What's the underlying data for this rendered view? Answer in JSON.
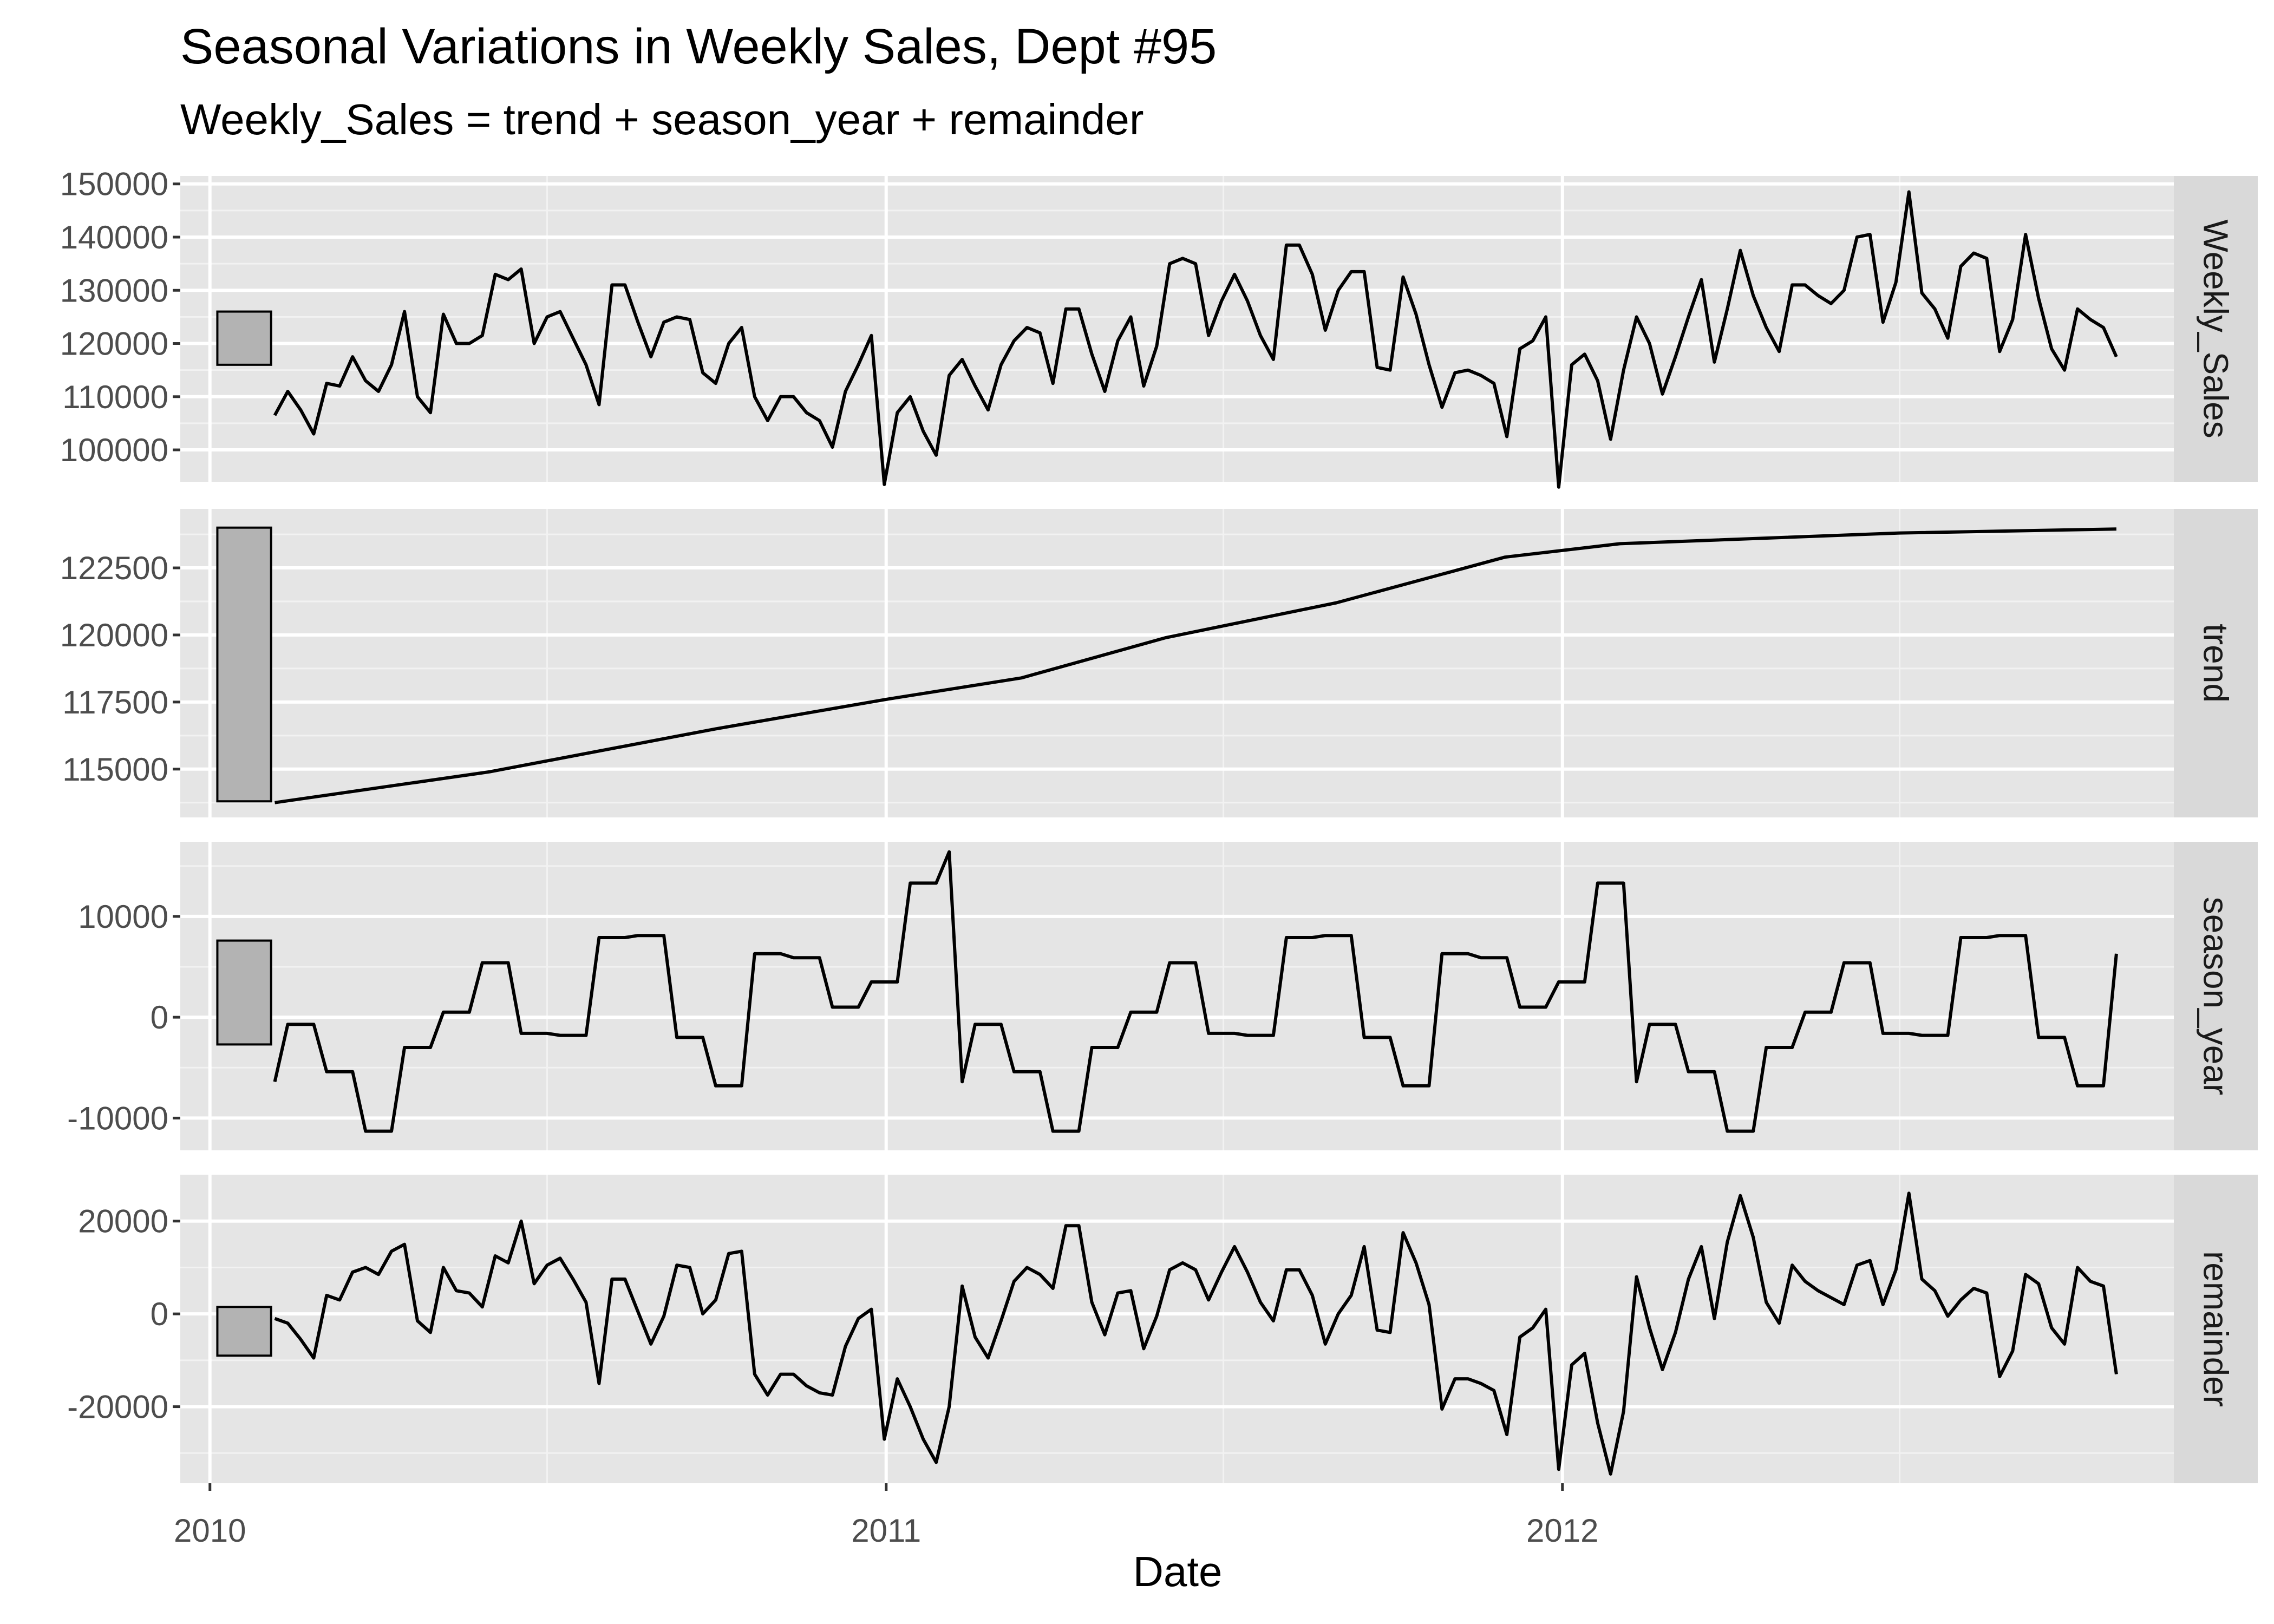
{
  "chart_data": {
    "type": "line",
    "title": "Seasonal Variations in Weekly Sales, Dept #95",
    "subtitle": "Weekly_Sales = trend + season_year + remainder",
    "xlabel": "Date",
    "x_range": [
      "2009-12-16",
      "2012-11-26"
    ],
    "x_ticks": [
      {
        "date": "2010-01-01",
        "label": "2010"
      },
      {
        "date": "2011-01-01",
        "label": "2011"
      },
      {
        "date": "2012-01-01",
        "label": "2012"
      }
    ],
    "x_minor_ticks": [
      "2010-07-02",
      "2011-07-02",
      "2012-07-01"
    ],
    "grid": true,
    "background": "#e5e5e5",
    "strip_background": "#d9d9d9",
    "line_color": "#000000",
    "scale_bar_fill": "#b3b3b3",
    "series_start_date": "2010-02-05",
    "series_interval_days": 7,
    "panels": [
      {
        "name": "Weekly_Sales",
        "ylim": [
          94000,
          151500
        ],
        "y_ticks": [
          100000,
          110000,
          120000,
          130000,
          140000,
          150000
        ],
        "y_tick_labels": [
          "100000",
          "110000",
          "120000",
          "130000",
          "140000",
          "150000"
        ],
        "y_minor_ticks": [
          105000,
          115000,
          125000,
          135000,
          145000
        ],
        "scale_bar": [
          116000,
          126000
        ],
        "values": [
          106500,
          111000,
          107500,
          103000,
          112500,
          112000,
          117500,
          113000,
          111000,
          116000,
          126000,
          110000,
          107000,
          125500,
          120000,
          120000,
          121500,
          133000,
          132000,
          134000,
          120000,
          125000,
          126000,
          121000,
          116000,
          108500,
          131000,
          131000,
          124000,
          117500,
          124000,
          125000,
          124500,
          114500,
          112500,
          120000,
          123000,
          110000,
          105500,
          110000,
          110000,
          107000,
          105500,
          100500,
          111000,
          116000,
          121500,
          93500,
          107000,
          110000,
          103500,
          99000,
          114000,
          117000,
          112000,
          107500,
          116000,
          120500,
          123000,
          122000,
          112500,
          126500,
          126500,
          118000,
          111000,
          120500,
          125000,
          112000,
          119500,
          135000,
          136000,
          135000,
          121500,
          128000,
          133000,
          128000,
          121500,
          117000,
          138500,
          138500,
          133000,
          122500,
          130000,
          133500,
          133500,
          115500,
          115000,
          132500,
          125500,
          116000,
          108000,
          114500,
          115000,
          114000,
          112500,
          102500,
          119000,
          120500,
          125000,
          93000,
          116000,
          118000,
          113000,
          102000,
          115000,
          125000,
          120000,
          110500,
          117500,
          125000,
          132000,
          116500,
          126500,
          137500,
          129000,
          123000,
          118500,
          131000,
          131000,
          129000,
          127500,
          130000,
          140000,
          140500,
          124000,
          131500,
          148500,
          129500,
          126500,
          121000,
          134500,
          137000,
          136000,
          118500,
          124500,
          140500,
          128500,
          119000,
          115000,
          126500,
          124500,
          123000,
          117500
        ]
      },
      {
        "name": "trend",
        "ylim": [
          113200,
          124700
        ],
        "y_ticks": [
          115000,
          117500,
          120000,
          122500
        ],
        "y_tick_labels": [
          "115000",
          "117500",
          "120000",
          "122500"
        ],
        "y_minor_ticks": [
          113750,
          116250,
          118750,
          121250,
          123750
        ],
        "scale_bar": [
          113800,
          124000
        ],
        "anchors": [
          [
            "2010-02-05",
            113750
          ],
          [
            "2010-06-01",
            114900
          ],
          [
            "2010-10-01",
            116500
          ],
          [
            "2011-01-01",
            117600
          ],
          [
            "2011-03-15",
            118400
          ],
          [
            "2011-06-01",
            119900
          ],
          [
            "2011-09-01",
            121200
          ],
          [
            "2011-12-01",
            122900
          ],
          [
            "2012-02-01",
            123400
          ],
          [
            "2012-07-01",
            123800
          ],
          [
            "2012-10-26",
            123950
          ]
        ]
      },
      {
        "name": "season_year",
        "ylim": [
          -13200,
          17400
        ],
        "y_ticks": [
          -10000,
          0,
          10000
        ],
        "y_tick_labels": [
          "-10000",
          "0",
          "10000"
        ],
        "y_minor_ticks": [
          -5000,
          5000,
          15000
        ],
        "scale_bar": [
          -2700,
          7600
        ],
        "values": [
          -6400,
          -700,
          -700,
          -700,
          -5400,
          -5400,
          -5400,
          -11300,
          -11300,
          -11300,
          -3000,
          -3000,
          -3000,
          500,
          500,
          500,
          5400,
          5400,
          5400,
          -1600,
          -1600,
          -1600,
          -1800,
          -1800,
          -1800,
          7900,
          7900,
          7900,
          8100,
          8100,
          8100,
          -2000,
          -2000,
          -2000,
          -6800,
          -6800,
          -6800,
          6300,
          6300,
          6300,
          5900,
          5900,
          5900,
          1000,
          1000,
          1000,
          3500,
          3500,
          3500,
          13300,
          13300,
          13300,
          16400,
          -6400,
          -700,
          -700,
          -700,
          -5400,
          -5400,
          -5400,
          -11300,
          -11300,
          -11300,
          -3000,
          -3000,
          -3000,
          500,
          500,
          500,
          5400,
          5400,
          5400,
          -1600,
          -1600,
          -1600,
          -1800,
          -1800,
          -1800,
          7900,
          7900,
          7900,
          8100,
          8100,
          8100,
          -2000,
          -2000,
          -2000,
          -6800,
          -6800,
          -6800,
          6300,
          6300,
          6300,
          5900,
          5900,
          5900,
          1000,
          1000,
          1000,
          3500,
          3500,
          3500,
          13300,
          13300,
          13300,
          -6400,
          -700,
          -700,
          -700,
          -5400,
          -5400,
          -5400,
          -11300,
          -11300,
          -11300,
          -3000,
          -3000,
          -3000,
          500,
          500,
          500,
          5400,
          5400,
          5400,
          -1600,
          -1600,
          -1600,
          -1800,
          -1800,
          -1800,
          7900,
          7900,
          7900,
          8100,
          8100,
          8100,
          -2000,
          -2000,
          -2000,
          -6800,
          -6800,
          -6800,
          6300
        ]
      },
      {
        "name": "remainder",
        "ylim": [
          -36500,
          30000
        ],
        "y_ticks": [
          -20000,
          0,
          20000
        ],
        "y_tick_labels": [
          "-20000",
          "0",
          "20000"
        ],
        "y_minor_ticks": [
          -30000,
          -10000,
          10000
        ],
        "scale_bar": [
          -9000,
          1500
        ],
        "values": [
          -1000,
          -2000,
          -5500,
          -9500,
          4000,
          3000,
          9000,
          10000,
          8500,
          13500,
          15000,
          -1500,
          -4000,
          10000,
          5000,
          4500,
          1500,
          12500,
          11000,
          20000,
          6500,
          10500,
          12000,
          7500,
          2500,
          -15000,
          7500,
          7500,
          500,
          -6500,
          -500,
          10500,
          10000,
          0,
          3000,
          13000,
          13500,
          -13000,
          -17500,
          -13000,
          -13000,
          -15500,
          -17000,
          -17500,
          -7000,
          -1000,
          1000,
          -27000,
          -14000,
          -20000,
          -27000,
          -32000,
          -20000,
          6000,
          -5000,
          -9500,
          -1500,
          7000,
          10000,
          8500,
          5500,
          19000,
          19000,
          2500,
          -4500,
          4500,
          5000,
          -7500,
          -500,
          9500,
          11000,
          9500,
          3000,
          9000,
          14500,
          9000,
          2500,
          -1500,
          9500,
          9500,
          4000,
          -6500,
          0,
          4000,
          14500,
          -3500,
          -4000,
          17500,
          11000,
          2000,
          -20500,
          -14000,
          -14000,
          -15000,
          -16500,
          -26000,
          -5000,
          -3000,
          1000,
          -33500,
          -11000,
          -8500,
          -23500,
          -34500,
          -21000,
          8000,
          -3000,
          -12000,
          -4000,
          7500,
          14500,
          -1000,
          15500,
          25500,
          16500,
          2500,
          -2000,
          10500,
          7000,
          5000,
          3500,
          2000,
          10500,
          11500,
          2000,
          9500,
          26000,
          7500,
          5000,
          -500,
          3000,
          5500,
          4500,
          -13500,
          -8000,
          8500,
          6500,
          -3000,
          -6500,
          10000,
          7000,
          6000,
          -13000
        ]
      }
    ]
  }
}
